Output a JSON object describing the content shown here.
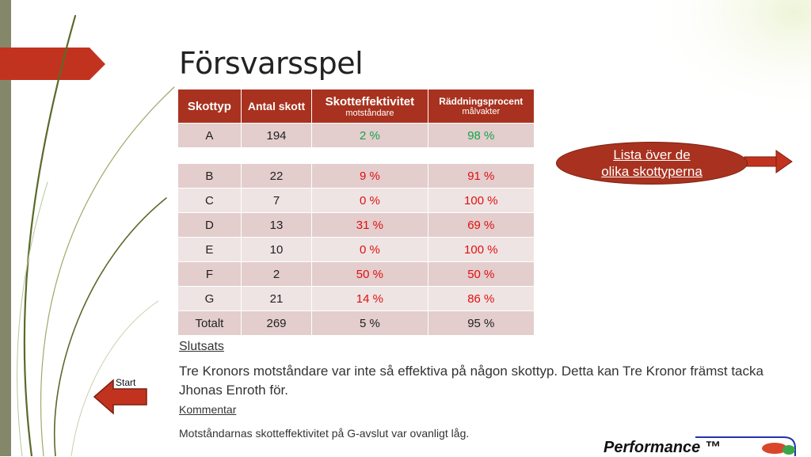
{
  "slide": {
    "title": "Försvarsspel"
  },
  "table": {
    "headers": [
      {
        "main": "Skottyp",
        "sub": ""
      },
      {
        "main": "Antal skott",
        "sub": ""
      },
      {
        "main": "Skotteffektivitet",
        "sub": "motståndare"
      },
      {
        "main": "Räddningsprocent",
        "sub": "målvakter"
      }
    ],
    "rows": [
      {
        "type": "A",
        "shots": "194",
        "efficiency": "2 %",
        "save": "98 %"
      },
      {
        "type": "B",
        "shots": "22",
        "efficiency": "9 %",
        "save": "91 %"
      },
      {
        "type": "C",
        "shots": "7",
        "efficiency": "0 %",
        "save": "100 %"
      },
      {
        "type": "D",
        "shots": "13",
        "efficiency": "31 %",
        "save": "69 %"
      },
      {
        "type": "E",
        "shots": "10",
        "efficiency": "0 %",
        "save": "100 %"
      },
      {
        "type": "F",
        "shots": "2",
        "efficiency": "50 %",
        "save": "50 %"
      },
      {
        "type": "G",
        "shots": "21",
        "efficiency": "14 %",
        "save": "86 %"
      },
      {
        "type": "Totalt",
        "shots": "269",
        "efficiency": "5 %",
        "save": "95 %"
      }
    ]
  },
  "link_bubble": {
    "line1": "Lista över de",
    "line2": "olika skottyperna"
  },
  "nav": {
    "start_label": "Start"
  },
  "conclusion": {
    "title": "Slutsats",
    "text": "Tre Kronors motståndare var inte så effektiva på någon skottyp. Detta kan Tre Kronor främst tacka Jhonas Enroth för."
  },
  "comment": {
    "title": "Kommentar",
    "text": "Motståndarnas skotteffektivitet på G-avslut var ovanligt låg."
  },
  "footer": {
    "brand": "Performance ™"
  },
  "colors": {
    "accent": "#a8321f",
    "green": "#12a54a",
    "red": "#e01010"
  }
}
